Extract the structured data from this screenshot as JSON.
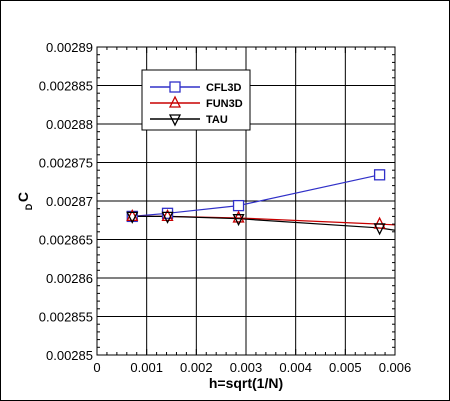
{
  "chart_data": {
    "type": "line",
    "xlabel": "h=sqrt(1/N)",
    "ylabel": "C",
    "ylabel_sub": "D",
    "xlim": [
      0,
      0.006
    ],
    "ylim": [
      0.00285,
      0.00289
    ],
    "x_ticks": [
      0,
      0.001,
      0.002,
      0.003,
      0.004,
      0.005,
      0.006
    ],
    "x_tick_labels": [
      "0",
      "0.001",
      "0.002",
      "0.003",
      "0.004",
      "0.005",
      "0.006"
    ],
    "y_ticks": [
      0.00285,
      0.002855,
      0.00286,
      0.002865,
      0.00287,
      0.002875,
      0.00288,
      0.002885,
      0.00289
    ],
    "y_tick_labels": [
      "0.00285",
      "0.002855",
      "0.00286",
      "0.002865",
      "0.00287",
      "0.002875",
      "0.00288",
      "0.002885",
      "0.00289"
    ],
    "grid": true,
    "legend_position": "top-left",
    "series": [
      {
        "name": "CFL3D",
        "color": "#3030c8",
        "marker": "square",
        "x": [
          0.00071,
          0.00142,
          0.00285,
          0.00569
        ],
        "y": [
          0.002868,
          0.0028684,
          0.0028694,
          0.0028734
        ]
      },
      {
        "name": "FUN3D",
        "color": "#c80000",
        "marker": "triangle-up",
        "x": [
          0.00071,
          0.00142,
          0.00285,
          0.00569,
          0.006
        ],
        "y": [
          0.002868,
          0.002868,
          0.0028678,
          0.002867,
          0.0028669
        ]
      },
      {
        "name": "TAU",
        "color": "#000000",
        "marker": "triangle-down",
        "x": [
          0.00071,
          0.00142,
          0.00285,
          0.00569,
          0.006
        ],
        "y": [
          0.002868,
          0.002868,
          0.0028677,
          0.0028665,
          0.0028662
        ]
      }
    ]
  }
}
